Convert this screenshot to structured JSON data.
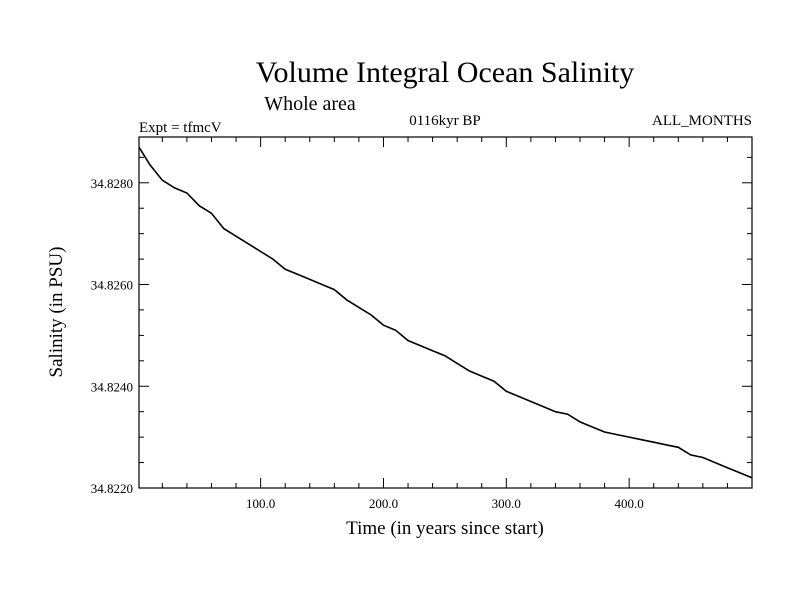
{
  "chart_data": {
    "type": "line",
    "title": "Volume Integral Ocean Salinity",
    "subtitle": "Whole area",
    "annotations": {
      "left": "Expt = tfmcV",
      "center": "0116kyr BP",
      "right": "ALL_MONTHS"
    },
    "xlabel": "Time (in years since start)",
    "ylabel": "Salinity (in PSU)",
    "xlim": [
      1,
      500
    ],
    "ylim": [
      34.822,
      34.8289
    ],
    "xticks": [
      100,
      200,
      300,
      400
    ],
    "xtick_labels": [
      "100.0",
      "200.0",
      "300.0",
      "400.0"
    ],
    "yticks": [
      34.822,
      34.824,
      34.826,
      34.828
    ],
    "ytick_labels": [
      "34.8220",
      "34.8240",
      "34.8260",
      "34.8280"
    ],
    "grid": false,
    "line_color": "#000000",
    "series": [
      {
        "x": [
          1,
          10,
          20,
          30,
          40,
          50,
          60,
          70,
          80,
          90,
          100,
          110,
          120,
          130,
          140,
          150,
          160,
          170,
          180,
          190,
          200,
          210,
          220,
          230,
          240,
          250,
          260,
          270,
          280,
          290,
          300,
          310,
          320,
          330,
          340,
          350,
          360,
          370,
          380,
          390,
          400,
          410,
          420,
          430,
          440,
          450,
          460,
          470,
          480,
          490,
          500
        ],
        "values": [
          34.8287,
          34.82835,
          34.82805,
          34.8279,
          34.8278,
          34.82755,
          34.8274,
          34.8271,
          34.82695,
          34.8268,
          34.82665,
          34.8265,
          34.8263,
          34.8262,
          34.8261,
          34.826,
          34.8259,
          34.8257,
          34.82555,
          34.8254,
          34.8252,
          34.8251,
          34.8249,
          34.8248,
          34.8247,
          34.8246,
          34.82445,
          34.8243,
          34.8242,
          34.8241,
          34.8239,
          34.8238,
          34.8237,
          34.8236,
          34.8235,
          34.82345,
          34.8233,
          34.8232,
          34.8231,
          34.82305,
          34.823,
          34.82295,
          34.8229,
          34.82285,
          34.8228,
          34.82265,
          34.8226,
          34.8225,
          34.8224,
          34.8223,
          34.8222
        ]
      }
    ]
  }
}
